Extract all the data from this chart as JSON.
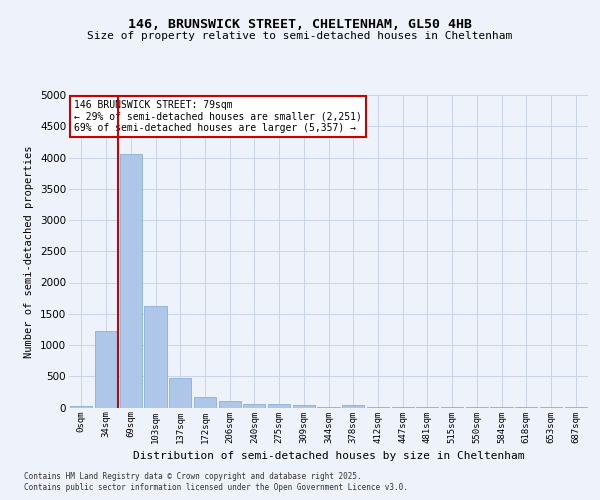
{
  "title1": "146, BRUNSWICK STREET, CHELTENHAM, GL50 4HB",
  "title2": "Size of property relative to semi-detached houses in Cheltenham",
  "xlabel": "Distribution of semi-detached houses by size in Cheltenham",
  "ylabel": "Number of semi-detached properties",
  "bar_color": "#aec6e8",
  "bar_edge_color": "#7aaad0",
  "grid_color": "#c8d4e8",
  "annotation_line_color": "#cc0000",
  "annotation_box_color": "#cc0000",
  "categories": [
    "0sqm",
    "34sqm",
    "69sqm",
    "103sqm",
    "137sqm",
    "172sqm",
    "206sqm",
    "240sqm",
    "275sqm",
    "309sqm",
    "344sqm",
    "378sqm",
    "412sqm",
    "447sqm",
    "481sqm",
    "515sqm",
    "550sqm",
    "584sqm",
    "618sqm",
    "653sqm",
    "687sqm"
  ],
  "values": [
    30,
    1220,
    4050,
    1620,
    470,
    175,
    110,
    60,
    55,
    35,
    5,
    40,
    5,
    5,
    2,
    2,
    2,
    2,
    2,
    2,
    2
  ],
  "property_label": "146 BRUNSWICK STREET: 79sqm",
  "pct_smaller": 29,
  "pct_larger": 69,
  "count_smaller": 2251,
  "count_larger": 5357,
  "red_line_x": 1.5,
  "ylim": [
    0,
    5000
  ],
  "yticks": [
    0,
    500,
    1000,
    1500,
    2000,
    2500,
    3000,
    3500,
    4000,
    4500,
    5000
  ],
  "footer1": "Contains HM Land Registry data © Crown copyright and database right 2025.",
  "footer2": "Contains public sector information licensed under the Open Government Licence v3.0.",
  "background_color": "#eef2fa",
  "plot_background": "#eef2fa"
}
